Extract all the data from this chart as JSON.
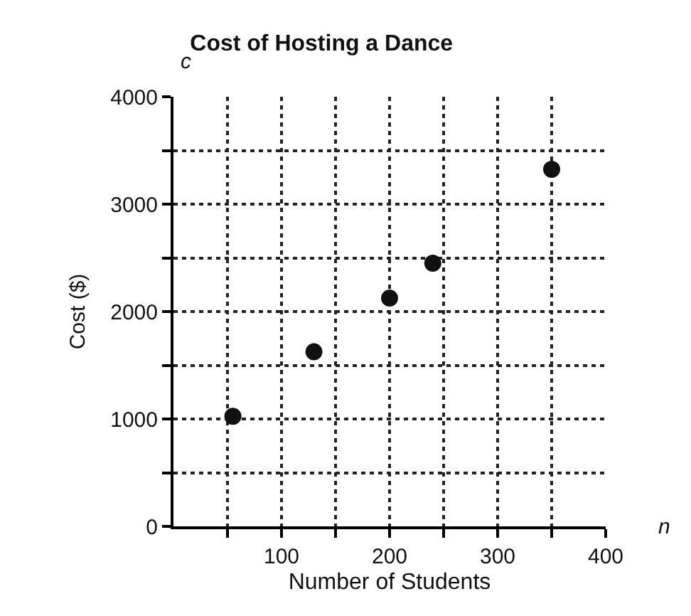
{
  "chart_data": {
    "type": "scatter",
    "title": "Cost of Hosting a Dance",
    "xlabel": "Number of Students",
    "ylabel": "Cost ($)",
    "x": [
      55,
      130,
      200,
      240,
      350
    ],
    "values": [
      1025,
      1625,
      2125,
      2450,
      3325
    ],
    "color": "#111111",
    "marker": "circle",
    "xlim": [
      0,
      400
    ],
    "xticks": [
      {
        "value": 50,
        "label": null
      },
      100,
      {
        "value": 150,
        "label": null
      },
      200,
      {
        "value": 250,
        "label": null
      },
      300,
      {
        "value": 350,
        "label": null
      },
      400
    ],
    "ylim": [
      0,
      4000
    ],
    "yticks": [
      0,
      {
        "value": 500,
        "label": null
      },
      1000,
      {
        "value": 1500,
        "label": null
      },
      2000,
      {
        "value": 2500,
        "label": null
      },
      3000,
      {
        "value": 3500,
        "label": null
      },
      4000
    ],
    "grid": true,
    "legend": false,
    "annotations": [
      "c",
      "n"
    ]
  }
}
